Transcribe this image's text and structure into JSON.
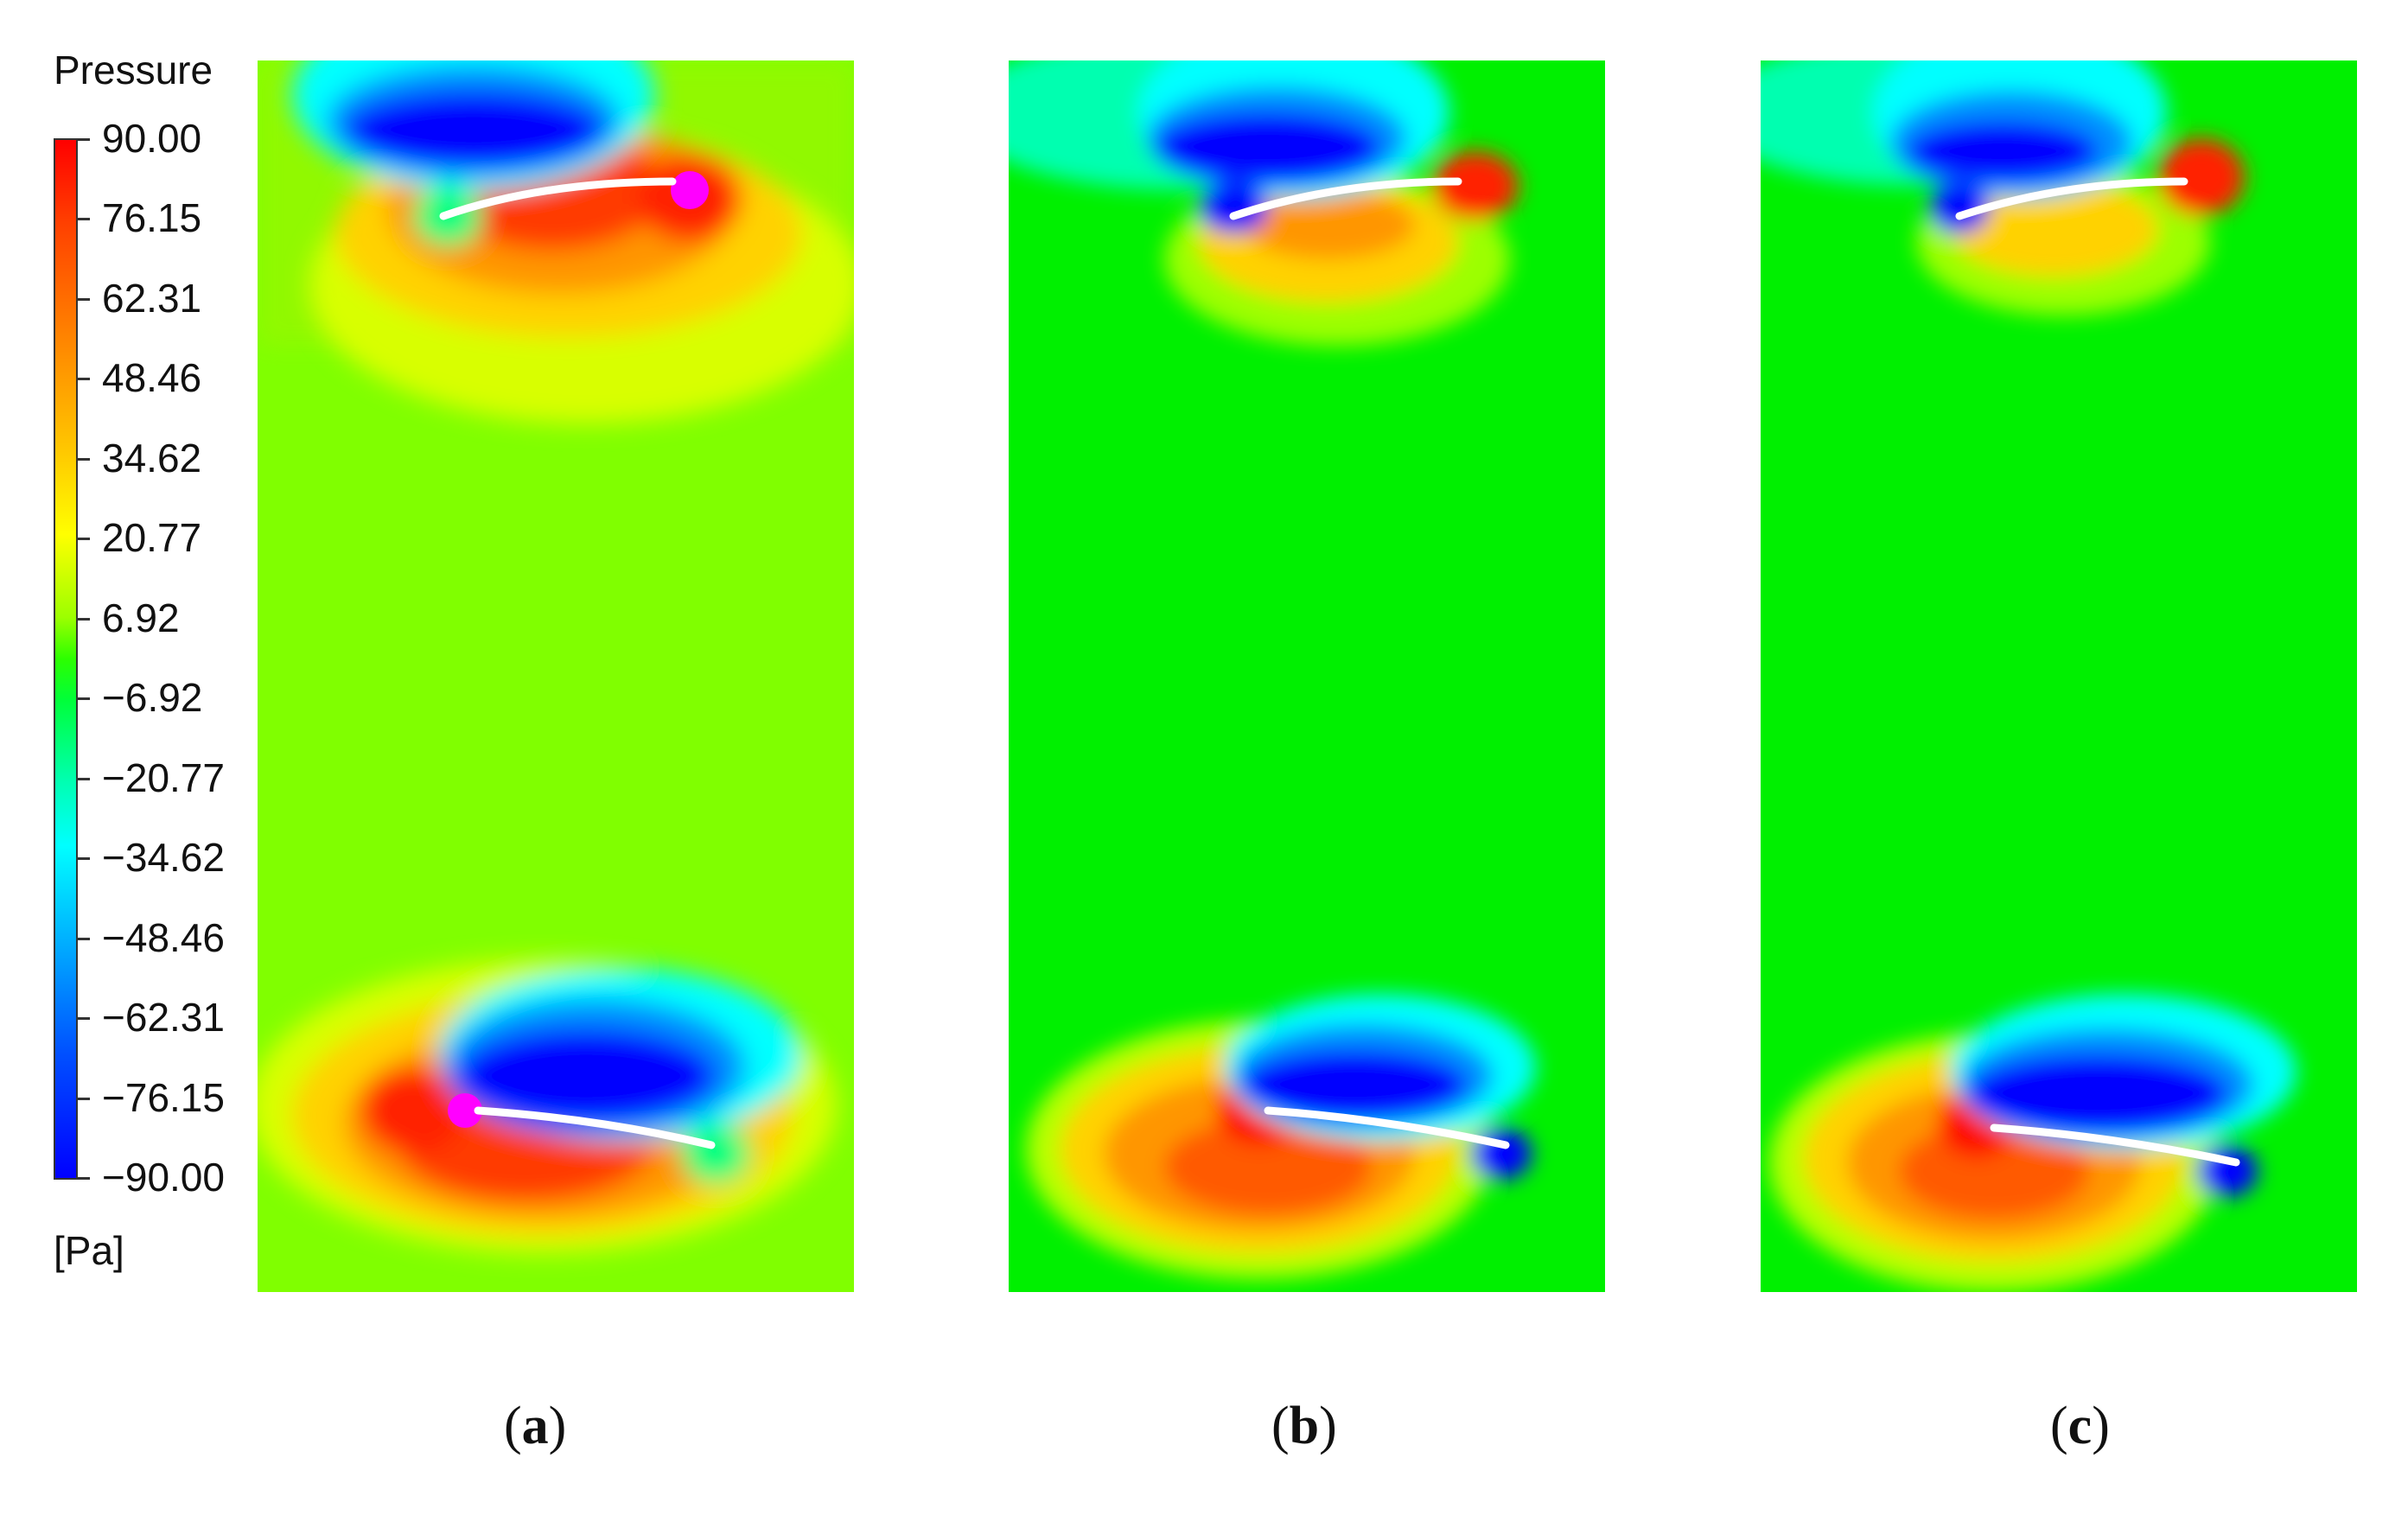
{
  "colorbar": {
    "title": "Pressure",
    "unit": "[Pa]",
    "ticks": [
      "90.00",
      "76.15",
      "62.31",
      "48.46",
      "34.62",
      "20.77",
      "6.92",
      "−6.92",
      "−20.77",
      "−34.62",
      "−48.46",
      "−62.31",
      "−76.15",
      "−90.00"
    ],
    "range": [
      -90,
      90
    ],
    "colors": [
      "#ff0000",
      "#ff8a00",
      "#ffff00",
      "#00ff00",
      "#00ffff",
      "#0000ff"
    ]
  },
  "panels": [
    {
      "id": "a",
      "label": "a",
      "background": "#80ff00"
    },
    {
      "id": "b",
      "label": "b",
      "background": "#00f000"
    },
    {
      "id": "c",
      "label": "c",
      "background": "#00f000"
    }
  ]
}
